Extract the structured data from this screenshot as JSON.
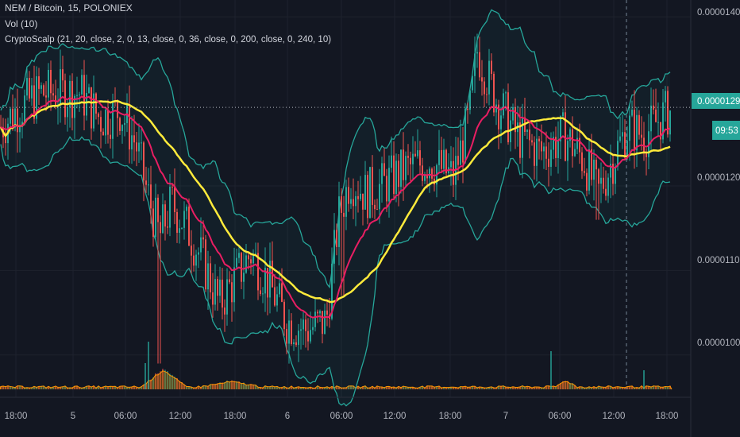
{
  "legend": {
    "symbol_line": "NEM / Bitcoin, 15, POLONIEX",
    "volume_line": "Vol (10)",
    "indicator_line": "CryptoScalp (21, 20, close, 2, 0, 13, close, 0, 36, close, 0, 200, close, 0, 240, 10)"
  },
  "price_scale": {
    "ticks": [
      "0.00001400",
      "0.00001293",
      "0.00001200",
      "0.00001100",
      "0.00001000"
    ],
    "last_price": "0.00001293",
    "countdown": "09:53"
  },
  "time_axis": {
    "ticks": [
      "18:00",
      "5",
      "06:00",
      "12:00",
      "18:00",
      "6",
      "06:00",
      "12:00",
      "18:00",
      "7",
      "06:00",
      "12:00",
      "18:00"
    ]
  },
  "colors": {
    "background": "#131722",
    "up": "#26a69a",
    "down": "#ef5350",
    "ema_fast": "#e91e63",
    "sma_slow": "#ffeb3b",
    "bands": "#26a69a",
    "volume": "#ff9800",
    "grid": "#1e222d"
  },
  "chart_data": {
    "type": "candlestick",
    "ylim": [
      9.5e-06,
      1.42e-05
    ],
    "price_ticks": [
      1.4e-05,
      1.2e-05,
      1.1e-05,
      1e-05
    ],
    "last_price": 1.293e-05,
    "price_path": [
      {
        "t": 0,
        "p": 1.27e-05
      },
      {
        "t": 20,
        "p": 1.29e-05
      },
      {
        "t": 50,
        "p": 1.31e-05
      },
      {
        "t": 75,
        "p": 1.31e-05
      },
      {
        "t": 100,
        "p": 1.31e-05
      },
      {
        "t": 125,
        "p": 1.28e-05
      },
      {
        "t": 150,
        "p": 1.29e-05
      },
      {
        "t": 170,
        "p": 1.25e-05
      },
      {
        "t": 185,
        "p": 1.19e-05
      },
      {
        "t": 200,
        "p": 1.14e-05
      },
      {
        "t": 215,
        "p": 1.18e-05
      },
      {
        "t": 235,
        "p": 1.15e-05
      },
      {
        "t": 255,
        "p": 1.11e-05
      },
      {
        "t": 275,
        "p": 1.06e-05
      },
      {
        "t": 295,
        "p": 1.09e-05
      },
      {
        "t": 315,
        "p": 1.12e-05
      },
      {
        "t": 335,
        "p": 1.09e-05
      },
      {
        "t": 360,
        "p": 1.04e-05
      },
      {
        "t": 385,
        "p": 1.03e-05
      },
      {
        "t": 410,
        "p": 1.04e-05
      },
      {
        "t": 425,
        "p": 1.16e-05
      },
      {
        "t": 440,
        "p": 1.21e-05
      },
      {
        "t": 460,
        "p": 1.19e-05
      },
      {
        "t": 480,
        "p": 1.2e-05
      },
      {
        "t": 510,
        "p": 1.22e-05
      },
      {
        "t": 540,
        "p": 1.23e-05
      },
      {
        "t": 570,
        "p": 1.21e-05
      },
      {
        "t": 590,
        "p": 1.28e-05
      },
      {
        "t": 600,
        "p": 1.36e-05
      },
      {
        "t": 625,
        "p": 1.3e-05
      },
      {
        "t": 650,
        "p": 1.26e-05
      },
      {
        "t": 680,
        "p": 1.24e-05
      },
      {
        "t": 710,
        "p": 1.26e-05
      },
      {
        "t": 735,
        "p": 1.23e-05
      },
      {
        "t": 752,
        "p": 1.19e-05
      },
      {
        "t": 770,
        "p": 1.23e-05
      },
      {
        "t": 790,
        "p": 1.27e-05
      },
      {
        "t": 810,
        "p": 1.26e-05
      },
      {
        "t": 830,
        "p": 1.28e-05
      },
      {
        "t": 845,
        "p": 1.29e-05
      }
    ],
    "spikes": [
      {
        "t": 200,
        "low": 9.9e-06
      },
      {
        "t": 430,
        "low": 1.07e-05
      },
      {
        "t": 600,
        "high": 1.38e-05
      },
      {
        "t": 752,
        "low": 1.16e-05
      }
    ],
    "volume_ymax": 100,
    "volume_bumps": [
      {
        "t": 205,
        "v": 40,
        "w": 28
      },
      {
        "t": 290,
        "v": 12,
        "w": 40
      },
      {
        "t": 712,
        "v": 15,
        "w": 14
      }
    ],
    "volume_spikes": [
      {
        "t": 186,
        "v": 100
      },
      {
        "t": 182,
        "v": 55
      },
      {
        "t": 693,
        "v": 80
      },
      {
        "t": 810,
        "v": 40
      }
    ],
    "series": [
      {
        "id": "ema",
        "length": 21,
        "color": "#e91e63"
      },
      {
        "id": "sma",
        "length": 40,
        "color": "#ffeb3b"
      },
      {
        "id": "bands",
        "length": 20,
        "mult": 2,
        "color": "#26a69a"
      }
    ]
  }
}
